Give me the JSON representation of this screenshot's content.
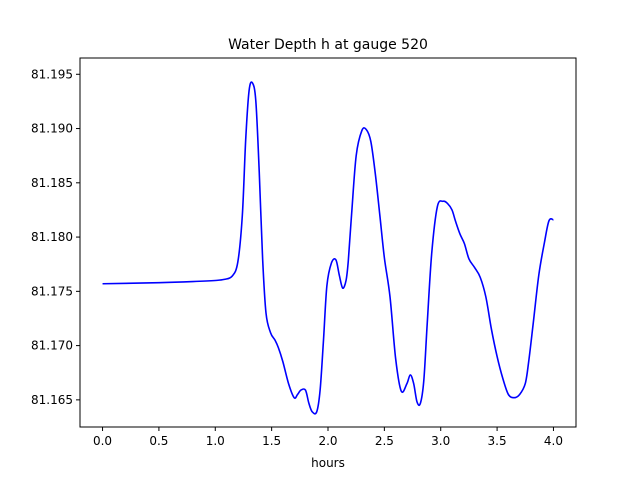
{
  "chart_data": {
    "type": "line",
    "title": "Water Depth h at gauge 520",
    "xlabel": "hours",
    "ylabel": "",
    "xlim": [
      -0.2,
      4.2
    ],
    "ylim": [
      81.1625,
      81.1965
    ],
    "grid": false,
    "legend": "none",
    "x_ticks": [
      0.0,
      0.5,
      1.0,
      1.5,
      2.0,
      2.5,
      3.0,
      3.5,
      4.0
    ],
    "x_tick_labels": [
      "0.0",
      "0.5",
      "1.0",
      "1.5",
      "2.0",
      "2.5",
      "3.0",
      "3.5",
      "4.0"
    ],
    "y_ticks": [
      81.165,
      81.17,
      81.175,
      81.18,
      81.185,
      81.19,
      81.195
    ],
    "y_tick_labels": [
      "81.165",
      "81.170",
      "81.175",
      "81.180",
      "81.185",
      "81.190",
      "81.195"
    ],
    "series": [
      {
        "color": "#0000ff",
        "x": [
          0.0,
          0.5,
          0.8,
          1.0,
          1.08,
          1.15,
          1.2,
          1.24,
          1.27,
          1.3,
          1.33,
          1.36,
          1.39,
          1.42,
          1.45,
          1.49,
          1.53,
          1.56,
          1.6,
          1.65,
          1.7,
          1.73,
          1.76,
          1.8,
          1.83,
          1.86,
          1.9,
          1.93,
          1.96,
          1.99,
          2.03,
          2.07,
          2.1,
          2.13,
          2.16,
          2.18,
          2.21,
          2.25,
          2.3,
          2.34,
          2.38,
          2.42,
          2.46,
          2.5,
          2.55,
          2.6,
          2.65,
          2.7,
          2.73,
          2.76,
          2.79,
          2.82,
          2.85,
          2.88,
          2.92,
          2.97,
          3.02,
          3.06,
          3.1,
          3.13,
          3.17,
          3.21,
          3.25,
          3.3,
          3.35,
          3.4,
          3.45,
          3.5,
          3.55,
          3.6,
          3.65,
          3.7,
          3.75,
          3.78,
          3.82,
          3.87,
          3.92,
          3.96,
          4.0
        ],
        "y": [
          81.1757,
          81.1758,
          81.1759,
          81.176,
          81.1761,
          81.1764,
          81.1777,
          81.182,
          81.189,
          81.1935,
          81.1942,
          81.1925,
          81.186,
          81.178,
          81.173,
          81.1712,
          81.1705,
          81.1698,
          81.1685,
          81.1665,
          81.1652,
          81.1655,
          81.1659,
          81.1659,
          81.1647,
          81.1639,
          81.1639,
          81.1659,
          81.1705,
          81.1755,
          81.1776,
          81.1779,
          81.1765,
          81.1753,
          81.176,
          81.1778,
          81.1822,
          81.1875,
          81.1898,
          81.1899,
          81.1888,
          81.1858,
          81.182,
          81.1781,
          81.1745,
          81.1688,
          81.1658,
          81.1665,
          81.1673,
          81.1665,
          81.1648,
          81.1647,
          81.1668,
          81.172,
          81.1785,
          81.1828,
          81.1833,
          81.1831,
          81.1825,
          81.1815,
          81.1803,
          81.1794,
          81.178,
          81.1772,
          81.1763,
          81.1745,
          81.1715,
          81.169,
          81.167,
          81.1655,
          81.1652,
          81.1655,
          81.1665,
          81.1685,
          81.172,
          81.1765,
          81.1795,
          81.1815,
          81.1816
        ]
      }
    ]
  }
}
